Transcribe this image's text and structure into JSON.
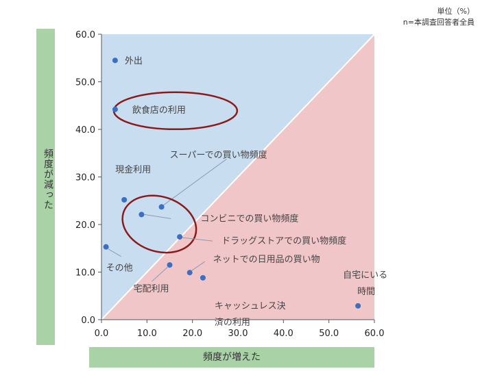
{
  "notes": {
    "unit": "単位（%）",
    "base": "n=本調査回答者全員"
  },
  "chart_data": {
    "type": "scatter",
    "xlabel": "頻度が増えた",
    "ylabel": "頻度が減った",
    "xlim": [
      0,
      60
    ],
    "ylim": [
      0,
      60
    ],
    "x_ticks": [
      "0.0",
      "10.0",
      "20.0",
      "30.0",
      "40.0",
      "50.0",
      "60.0"
    ],
    "y_ticks": [
      "0.0",
      "10.0",
      "20.0",
      "30.0",
      "40.0",
      "50.0",
      "60.0"
    ],
    "regions": [
      {
        "name": "decreased-region",
        "color": "#c9ddf0"
      },
      {
        "name": "increased-region",
        "color": "#f1c6c9"
      }
    ],
    "diagonal_color": "#ffffff",
    "point_color": "#3a6fc2",
    "highlight_color": "#8b1a1a",
    "points": [
      {
        "label": "外出",
        "x": 3.0,
        "y": 54.5
      },
      {
        "label": "飲食店の利用",
        "x": 3.0,
        "y": 44.2
      },
      {
        "label": "現金利用",
        "x": 5.0,
        "y": 25.2
      },
      {
        "label": "スーパーでの買い物頻度",
        "x": 13.2,
        "y": 23.7
      },
      {
        "label": "コンビニでの買い物頻度",
        "x": 8.8,
        "y": 22.1
      },
      {
        "label": "ドラッグストアでの買い物頻度",
        "x": 17.2,
        "y": 17.4
      },
      {
        "label": "その他",
        "x": 1.0,
        "y": 15.3
      },
      {
        "label": "宅配利用",
        "x": 15.0,
        "y": 11.5
      },
      {
        "label": "ネットでの日用品の買い物",
        "x": 19.4,
        "y": 9.9
      },
      {
        "label": "キャッシュレス決済の利用",
        "x": 22.3,
        "y": 8.8
      },
      {
        "label": "自宅にいる時間",
        "x": 56.4,
        "y": 2.9
      }
    ],
    "label_lines": {
      "外出": [
        "外出"
      ],
      "飲食店の利用": [
        "飲食店の利用"
      ],
      "現金利用": [
        "現金利用"
      ],
      "スーパーでの買い物頻度": [
        "スーパーでの買い物頻度"
      ],
      "コンビニでの買い物頻度": [
        "コンビニでの買い物頻度"
      ],
      "ドラッグストアでの買い物頻度": [
        "ドラッグストアでの買い物頻度"
      ],
      "その他": [
        "その他"
      ],
      "宅配利用": [
        "宅配利用"
      ],
      "ネットでの日用品の買い物": [
        "ネットでの日用品の買い物"
      ],
      "キャッシュレス決済の利用": [
        "キャッシュレス決",
        "済の利用"
      ],
      "自宅にいる時間": [
        "自宅にいる",
        "時間"
      ]
    },
    "highlighted": [
      "飲食店の利用",
      "コンビニでの買い物頻度"
    ]
  }
}
